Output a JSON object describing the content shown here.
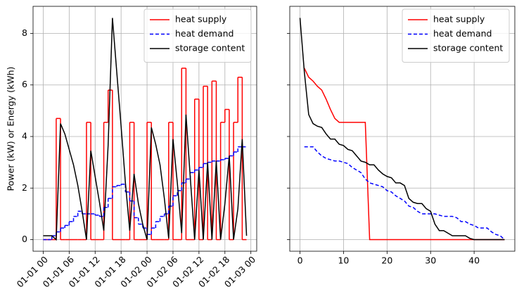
{
  "chart_data": [
    {
      "type": "line",
      "ylabel": "Power (kW) or Energy (kWh)",
      "x": [
        "01-01 00",
        "01-01 01",
        "01-01 02",
        "01-01 03",
        "01-01 04",
        "01-01 05",
        "01-01 06",
        "01-01 07",
        "01-01 08",
        "01-01 09",
        "01-01 10",
        "01-01 11",
        "01-01 12",
        "01-01 13",
        "01-01 14",
        "01-01 15",
        "01-01 16",
        "01-01 17",
        "01-01 18",
        "01-01 19",
        "01-01 20",
        "01-01 21",
        "01-01 22",
        "01-01 23",
        "01-02 00",
        "01-02 01",
        "01-02 02",
        "01-02 03",
        "01-02 04",
        "01-02 05",
        "01-02 06",
        "01-02 07",
        "01-02 08",
        "01-02 09",
        "01-02 10",
        "01-02 11",
        "01-02 12",
        "01-02 13",
        "01-02 14",
        "01-02 15",
        "01-02 16",
        "01-02 17",
        "01-02 18",
        "01-02 19",
        "01-02 20",
        "01-02 21",
        "01-02 22",
        "01-02 23"
      ],
      "xticks": [
        "01-01 00",
        "01-01 06",
        "01-01 12",
        "01-01 18",
        "01-02 00",
        "01-02 06",
        "01-02 12",
        "01-02 18",
        "01-03 00"
      ],
      "ylim": [
        -0.45,
        9.05
      ],
      "yticks": [
        0,
        2,
        4,
        6,
        8
      ],
      "grid": true,
      "legend": "upper right",
      "series": [
        {
          "name": "heat supply",
          "color": "#ff0000",
          "step": true,
          "dashed": false,
          "values": [
            0,
            0,
            0,
            4.7,
            0,
            0,
            0,
            0,
            0,
            0,
            4.55,
            0,
            0,
            0,
            4.55,
            5.8,
            0,
            0,
            0,
            0,
            4.55,
            0,
            0,
            0,
            4.55,
            0,
            0,
            0,
            0,
            4.55,
            0,
            0,
            6.65,
            0,
            0,
            5.45,
            0,
            5.95,
            0,
            6.15,
            0,
            4.55,
            5.05,
            0,
            4.55,
            6.3,
            0,
            0
          ]
        },
        {
          "name": "heat demand",
          "color": "#0000ff",
          "step": true,
          "dashed": true,
          "values": [
            0,
            0,
            0.15,
            0.3,
            0.45,
            0.55,
            0.7,
            0.9,
            1.1,
            1.0,
            1.0,
            1.0,
            0.95,
            0.9,
            1.25,
            1.6,
            2.05,
            2.1,
            2.15,
            1.85,
            1.5,
            0.85,
            0.6,
            0.45,
            0.2,
            0.45,
            0.7,
            0.9,
            1.0,
            1.3,
            1.7,
            1.9,
            2.2,
            2.35,
            2.6,
            2.7,
            2.8,
            2.95,
            3.0,
            3.05,
            3.05,
            3.1,
            3.15,
            3.25,
            3.4,
            3.6,
            3.6,
            3.6
          ]
        },
        {
          "name": "storage content",
          "color": "#000000",
          "step": false,
          "dashed": false,
          "values": [
            0.15,
            0.15,
            0.15,
            0,
            4.5,
            4.1,
            3.5,
            2.9,
            2.1,
            1.1,
            0,
            3.45,
            2.45,
            1.45,
            0.35,
            3.65,
            8.6,
            6.5,
            4.4,
            2.2,
            0.35,
            2.55,
            1.4,
            0.6,
            0,
            4.35,
            3.7,
            2.9,
            1.6,
            0.05,
            3.9,
            2.2,
            0.25,
            4.85,
            2.4,
            0,
            2.7,
            0,
            3.0,
            0,
            3.05,
            0,
            1.4,
            3.25,
            0,
            1.2,
            3.9,
            0.15
          ]
        }
      ]
    },
    {
      "type": "line",
      "x": [
        0,
        1,
        2,
        3,
        4,
        5,
        6,
        7,
        8,
        9,
        10,
        11,
        12,
        13,
        14,
        15,
        16,
        17,
        18,
        19,
        20,
        21,
        22,
        23,
        24,
        25,
        26,
        27,
        28,
        29,
        30,
        31,
        32,
        33,
        34,
        35,
        36,
        37,
        38,
        39,
        40,
        41,
        42,
        43,
        44,
        45,
        46,
        47
      ],
      "xlim": [
        -2.35,
        49.35
      ],
      "xticks": [
        0,
        10,
        20,
        30,
        40
      ],
      "ylim": [
        -0.45,
        9.05
      ],
      "yticks": [
        0,
        2,
        4,
        6,
        8
      ],
      "ytick_labels": false,
      "grid": true,
      "legend": "upper right",
      "series": [
        {
          "name": "heat supply",
          "color": "#ff0000",
          "step": false,
          "dashed": false,
          "values": [
            null,
            6.65,
            6.3,
            6.15,
            5.95,
            5.8,
            5.45,
            5.05,
            4.7,
            4.55,
            4.55,
            4.55,
            4.55,
            4.55,
            4.55,
            4.55,
            0,
            0,
            0,
            0,
            0,
            0,
            0,
            0,
            0,
            0,
            0,
            0,
            0,
            0,
            0,
            0,
            0,
            0,
            0,
            0,
            0,
            0,
            0,
            0,
            0,
            0,
            0,
            0,
            0,
            0,
            0,
            0
          ]
        },
        {
          "name": "heat demand",
          "color": "#0000ff",
          "step": false,
          "dashed": true,
          "values": [
            null,
            3.6,
            3.6,
            3.6,
            3.4,
            3.25,
            3.15,
            3.1,
            3.05,
            3.05,
            3.0,
            2.95,
            2.8,
            2.7,
            2.6,
            2.35,
            2.2,
            2.15,
            2.1,
            2.05,
            1.9,
            1.85,
            1.7,
            1.6,
            1.5,
            1.3,
            1.25,
            1.1,
            1.0,
            1.0,
            1.0,
            1.0,
            0.95,
            0.9,
            0.9,
            0.9,
            0.85,
            0.7,
            0.7,
            0.6,
            0.55,
            0.45,
            0.45,
            0.45,
            0.3,
            0.2,
            0.15,
            0
          ]
        },
        {
          "name": "storage content",
          "color": "#000000",
          "step": false,
          "dashed": false,
          "values": [
            8.6,
            6.5,
            4.85,
            4.5,
            4.4,
            4.35,
            4.1,
            3.9,
            3.9,
            3.7,
            3.65,
            3.5,
            3.45,
            3.25,
            3.05,
            3.0,
            2.9,
            2.9,
            2.7,
            2.55,
            2.45,
            2.4,
            2.2,
            2.2,
            2.1,
            1.6,
            1.45,
            1.4,
            1.4,
            1.2,
            1.1,
            0.6,
            0.35,
            0.35,
            0.25,
            0.15,
            0.15,
            0.15,
            0.15,
            0.05,
            0,
            0,
            0,
            0,
            0,
            0,
            0,
            0
          ]
        }
      ]
    }
  ]
}
